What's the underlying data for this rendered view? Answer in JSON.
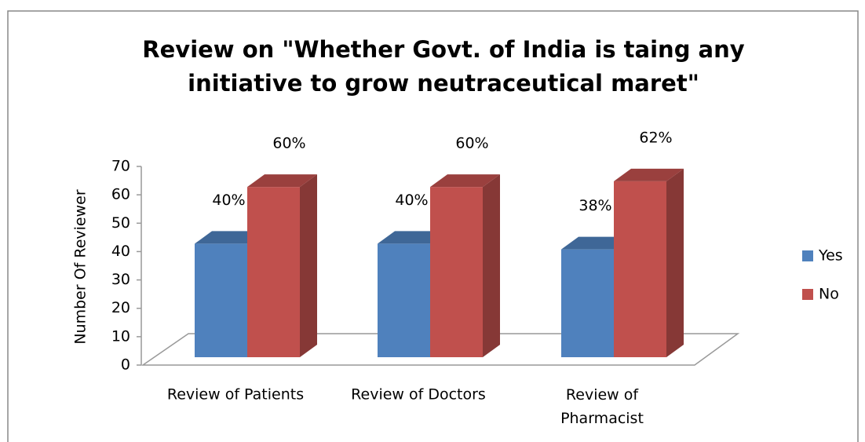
{
  "chart_data": {
    "type": "bar3d",
    "title": "Review on \"Whether Govt. of India is taing any initiative to grow neutraceutical maret\"",
    "title_lines": [
      "Review on \"Whether Govt. of India is taing any",
      "initiative to grow neutraceutical maret\""
    ],
    "y_label": "Number Of Reviewer",
    "categories": [
      "Review of Patients",
      "Review of Doctors",
      "Review of Pharmacist"
    ],
    "series": [
      {
        "name": "Yes",
        "color": "#4f81bd",
        "values": [
          40,
          40,
          38
        ],
        "value_labels": [
          "40%",
          "40%",
          "38%"
        ]
      },
      {
        "name": "No",
        "color": "#c0504d",
        "values": [
          60,
          60,
          62
        ],
        "value_labels": [
          "60%",
          "60%",
          "62%"
        ]
      }
    ],
    "ylim": [
      0,
      70
    ],
    "yticks": [
      0,
      10,
      20,
      30,
      40,
      50,
      60,
      70
    ],
    "legend": "right"
  }
}
